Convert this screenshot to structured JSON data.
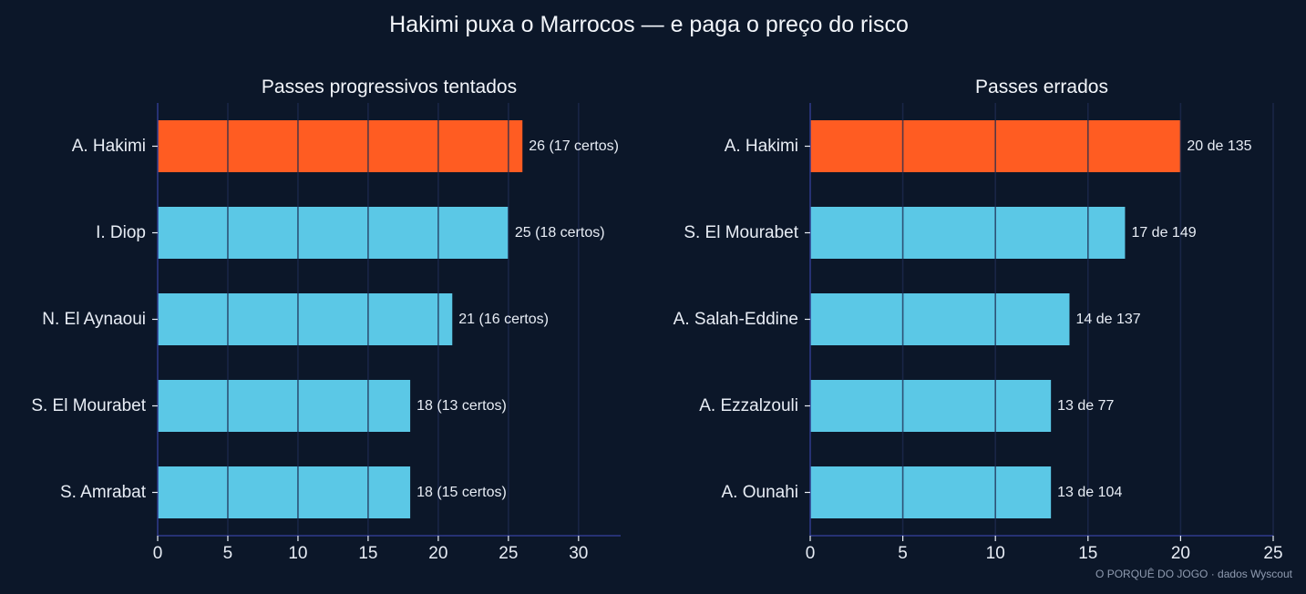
{
  "title": "Hakimi puxa o Marrocos — e paga o preço do risco",
  "credit": "O PORQUÊ DO JOGO · dados Wyscout",
  "colors": {
    "background": "#0c1729",
    "highlight": "#ff5c22",
    "bar": "#5bc8e6",
    "grid": "#1d2b50",
    "axis": "#2e3a8c",
    "text": "#e8edf5"
  },
  "chart_data": [
    {
      "type": "bar",
      "orientation": "horizontal",
      "title": "Passes progressivos tentados",
      "categories": [
        "A. Hakimi",
        "I. Diop",
        "N. El Aynaoui",
        "S. El Mourabet",
        "S. Amrabat"
      ],
      "values": [
        26,
        25,
        21,
        18,
        18
      ],
      "labels": [
        "26 (17 certos)",
        "25 (18 certos)",
        "21 (16 certos)",
        "18 (13 certos)",
        "18 (15 certos)"
      ],
      "highlight": "A. Hakimi",
      "xlim": [
        0,
        33
      ],
      "xticks": [
        0,
        5,
        10,
        15,
        20,
        25,
        30
      ],
      "grid": true
    },
    {
      "type": "bar",
      "orientation": "horizontal",
      "title": "Passes errados",
      "categories": [
        "A. Hakimi",
        "S. El Mourabet",
        "A. Salah-Eddine",
        "A. Ezzalzouli",
        "A. Ounahi"
      ],
      "values": [
        20,
        17,
        14,
        13,
        13
      ],
      "labels": [
        "20 de 135",
        "17 de 149",
        "14 de 137",
        "13 de 77",
        "13 de 104"
      ],
      "highlight": "A. Hakimi",
      "xlim": [
        0,
        25
      ],
      "xticks": [
        0,
        5,
        10,
        15,
        20,
        25
      ],
      "grid": true
    }
  ]
}
